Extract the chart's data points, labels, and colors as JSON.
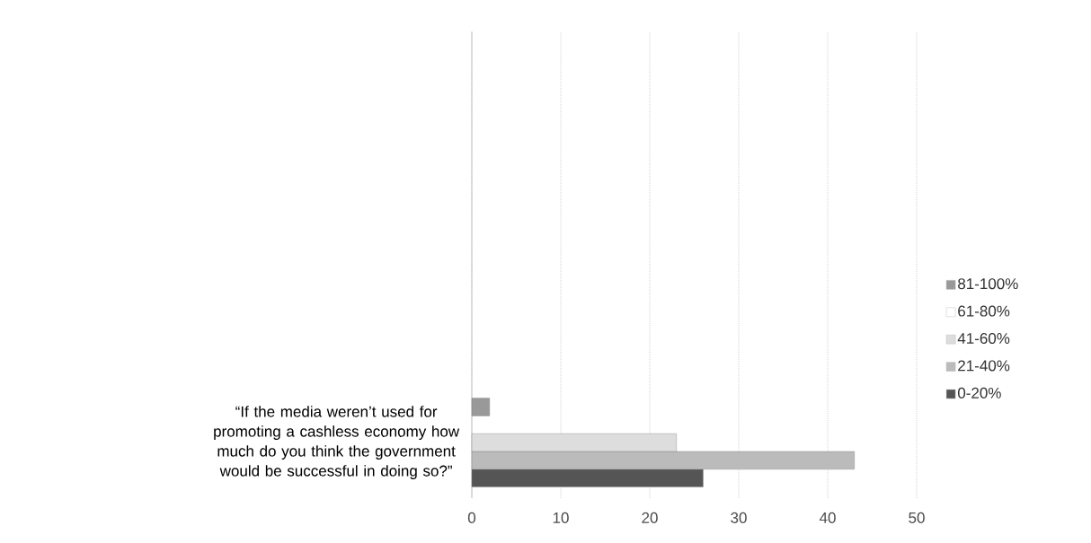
{
  "chart_data": {
    "type": "bar",
    "orientation": "horizontal",
    "categories": [
      "“If the media weren’t used for promoting a cashless economy how much do you think the government would be successful in doing so?”"
    ],
    "series": [
      {
        "name": "0-20%",
        "color": "#555555",
        "values": [
          26
        ]
      },
      {
        "name": "21-40%",
        "color": "#bbbbbb",
        "values": [
          43
        ]
      },
      {
        "name": "41-60%",
        "color": "#dddddd",
        "values": [
          23
        ]
      },
      {
        "name": "61-80%",
        "color": "#ffffff",
        "values": [
          null
        ]
      },
      {
        "name": "81-100%",
        "color": "#999999",
        "values": [
          2
        ]
      }
    ],
    "xlim": [
      0,
      50
    ],
    "xticks": [
      0,
      10,
      20,
      30,
      40,
      50
    ],
    "grid": "x",
    "legend": "right"
  }
}
